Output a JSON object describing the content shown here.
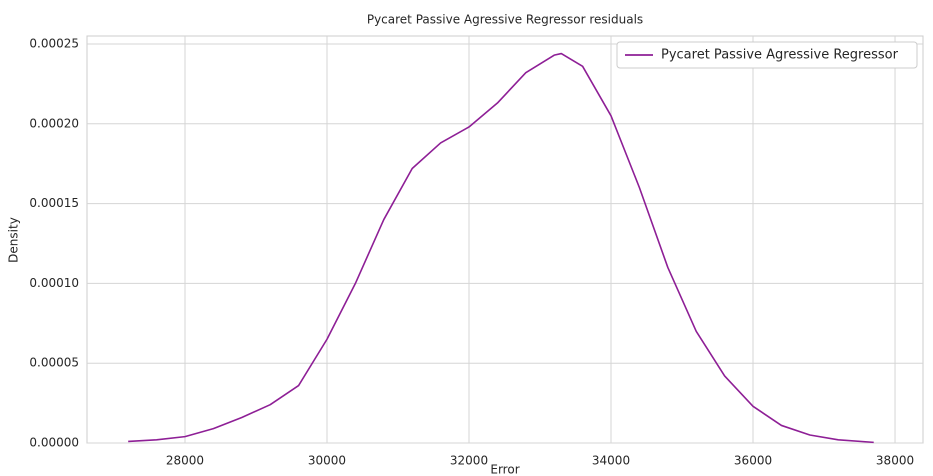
{
  "chart_data": {
    "type": "line",
    "title": "Pycaret Passive Agressive Regressor residuals",
    "xlabel": "Error",
    "ylabel": "Density",
    "x": [
      27200,
      27600,
      28000,
      28400,
      28800,
      29200,
      29600,
      30000,
      30400,
      30800,
      31200,
      31600,
      32000,
      32400,
      32800,
      33200,
      33300,
      33600,
      34000,
      34400,
      34800,
      35200,
      35600,
      36000,
      36400,
      36800,
      37200,
      37700
    ],
    "series": [
      {
        "name": "Pycaret Passive Agressive Regressor",
        "color": "#8e1f96",
        "values": [
          1e-06,
          2e-06,
          4e-06,
          9e-06,
          1.6e-05,
          2.4e-05,
          3.6e-05,
          6.5e-05,
          0.0001,
          0.00014,
          0.000172,
          0.000188,
          0.000198,
          0.000213,
          0.000232,
          0.000243,
          0.000244,
          0.000236,
          0.000205,
          0.00016,
          0.00011,
          7e-05,
          4.2e-05,
          2.3e-05,
          1.1e-05,
          5e-06,
          2e-06,
          4e-07
        ]
      }
    ],
    "xlim": [
      26620,
      38394
    ],
    "ylim": [
      0,
      0.000255
    ],
    "xticks": [
      28000,
      30000,
      32000,
      34000,
      36000,
      38000
    ],
    "yticks": [
      {
        "value": 0,
        "label": "0.00000"
      },
      5e-05,
      {
        "value": 0.0001,
        "label": "0.00010"
      },
      0.00015,
      {
        "value": 0.0002,
        "label": "0.00020"
      },
      0.00025
    ],
    "grid": true,
    "legend": "upper right"
  }
}
